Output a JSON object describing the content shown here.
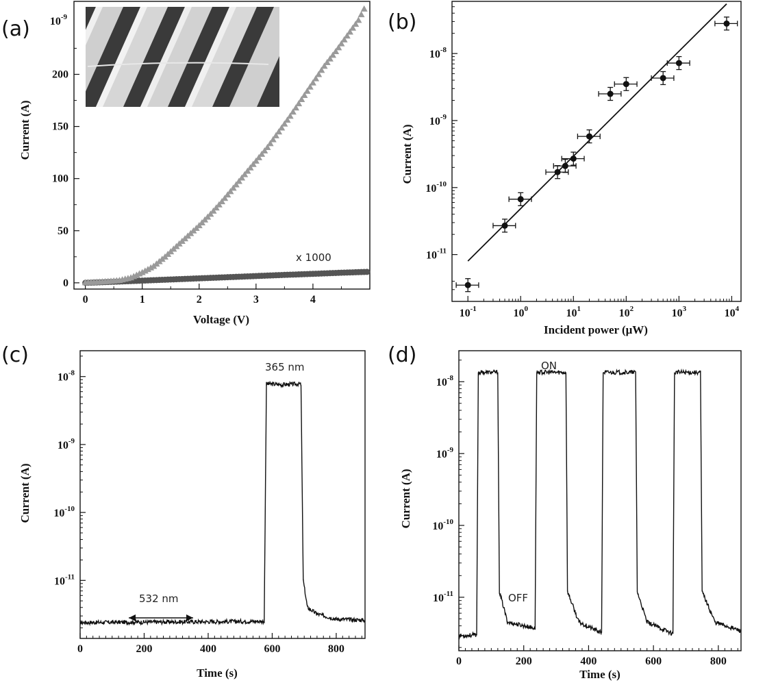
{
  "chart_data": [
    {
      "panel": "(a)",
      "type": "scatter",
      "xlabel": "Voltage (V)",
      "ylabel": "Current (A)",
      "y_multiplier_label": "10-9",
      "xlim": [
        -0.2,
        5.0
      ],
      "ylim": [
        -6,
        270
      ],
      "x_ticks": [
        0,
        1,
        2,
        3,
        4
      ],
      "y_ticks": [
        0,
        50,
        100,
        150,
        200
      ],
      "series": [
        {
          "name": "",
          "color": "#9a9a9a",
          "marker": "triangle",
          "x": [
            0.0,
            0.2,
            0.4,
            0.6,
            0.8,
            1.0,
            1.2,
            1.4,
            1.6,
            1.8,
            2.0,
            2.2,
            2.4,
            2.6,
            2.8,
            3.0,
            3.2,
            3.4,
            3.6,
            3.8,
            4.0,
            4.2,
            4.4,
            4.6,
            4.8,
            4.92
          ],
          "y": [
            0.3,
            0.8,
            1.5,
            2.5,
            5,
            10,
            16,
            25,
            35,
            45,
            55,
            66,
            78,
            91,
            104,
            117,
            130,
            145,
            160,
            176,
            192,
            208,
            222,
            237,
            252,
            265
          ]
        },
        {
          "name": "x 1000",
          "color": "#555555",
          "marker": "circle",
          "x": [
            0,
            0.5,
            1.0,
            1.5,
            2.0,
            2.5,
            3.0,
            3.5,
            4.0,
            4.5,
            4.95
          ],
          "y": [
            0,
            1,
            2.1,
            3.2,
            4.3,
            5.4,
            6.5,
            7.6,
            8.6,
            9.7,
            10.5
          ]
        }
      ],
      "annotations": [
        "x 1000"
      ]
    },
    {
      "panel": "(b)",
      "type": "scatter",
      "xlabel": "Incident power (μW)",
      "ylabel": "Current (A)",
      "xscale": "log",
      "yscale": "log",
      "xlim": [
        0.05,
        15000
      ],
      "ylim": [
        2e-12,
        6e-08
      ],
      "x_ticks": [
        "10-1",
        "100",
        "101",
        "102",
        "103",
        "104"
      ],
      "y_ticks": [
        "10-11",
        "10-10",
        "10-9",
        "10-8"
      ],
      "series": [
        {
          "name": "",
          "marker": "circle",
          "x": [
            0.1,
            0.5,
            1,
            5,
            7,
            10,
            20,
            50,
            100,
            500,
            1000,
            8000
          ],
          "y": [
            3.5e-12,
            2.7e-11,
            6.7e-11,
            1.7e-10,
            2.1e-10,
            2.7e-10,
            5.8e-10,
            2.5e-09,
            3.5e-09,
            4.3e-09,
            7.2e-09,
            2.8e-08
          ]
        }
      ],
      "fit_line": {
        "x": [
          0.1,
          8000
        ],
        "y": [
          8e-12,
          5.5e-08
        ]
      }
    },
    {
      "panel": "(c)",
      "type": "line",
      "xlabel": "Time (s)",
      "ylabel": "Current (A)",
      "yscale": "log",
      "xlim": [
        0,
        890
      ],
      "ylim": [
        1.4e-12,
        2.4e-08
      ],
      "x_ticks": [
        0,
        200,
        400,
        600,
        800
      ],
      "y_ticks": [
        "10-11",
        "10-10",
        "10-9",
        "10-8"
      ],
      "series": [
        {
          "name": "",
          "x": [
            0,
            575,
            582,
            590,
            630,
            685,
            690,
            697,
            710,
            740,
            800,
            890
          ],
          "y": [
            2.4e-12,
            2.5e-12,
            7.8e-09,
            7.8e-09,
            7.6e-09,
            7.8e-09,
            7.5e-09,
            1e-11,
            4e-12,
            3.2e-12,
            2.7e-12,
            2.6e-12
          ]
        }
      ],
      "annotations": [
        "365 nm",
        "532 nm"
      ]
    },
    {
      "panel": "(d)",
      "type": "line",
      "xlabel": "Time (s)",
      "ylabel": "Current (A)",
      "yscale": "log",
      "xlim": [
        0,
        870
      ],
      "ylim": [
        1.8e-12,
        2.7e-08
      ],
      "x_ticks": [
        0,
        200,
        400,
        600,
        800
      ],
      "y_ticks": [
        "10-11",
        "10-10",
        "10-9",
        "10-8"
      ],
      "series": [
        {
          "name": "",
          "x": [
            0,
            55,
            60,
            120,
            125,
            150,
            235,
            240,
            330,
            335,
            370,
            440,
            445,
            545,
            550,
            580,
            660,
            665,
            745,
            750,
            790,
            870
          ],
          "y": [
            2.9e-12,
            3e-12,
            1.35e-08,
            1.35e-08,
            1.2e-11,
            4.5e-12,
            3.7e-12,
            1.35e-08,
            1.35e-08,
            1.2e-11,
            4.5e-12,
            3.2e-12,
            1.35e-08,
            1.35e-08,
            1.2e-11,
            4.5e-12,
            3.1e-12,
            1.35e-08,
            1.35e-08,
            1.2e-11,
            4.5e-12,
            3.4e-12
          ]
        }
      ],
      "annotations": [
        "ON",
        "OFF"
      ]
    }
  ],
  "panel_letters": [
    "(a)",
    "(b)",
    "(c)",
    "(d)"
  ]
}
